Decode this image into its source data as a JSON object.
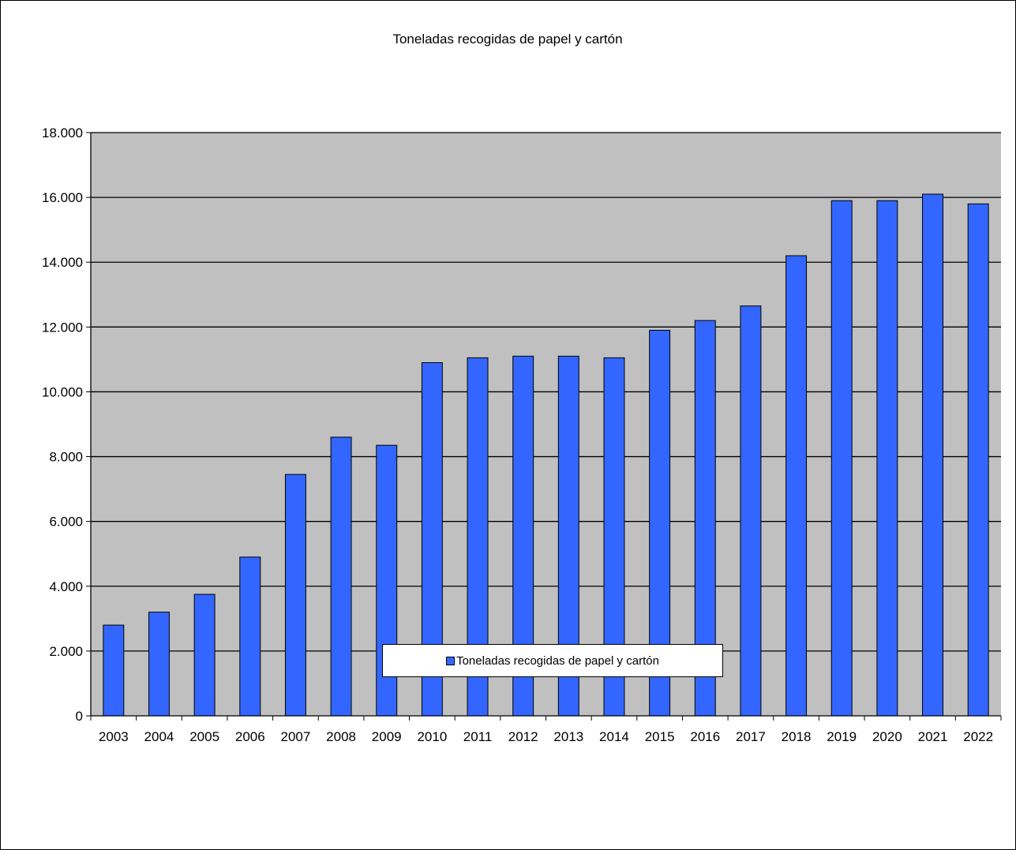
{
  "chart_data": {
    "type": "bar",
    "title": "Toneladas recogidas de papel y cartón",
    "xlabel": "",
    "ylabel": "",
    "categories": [
      "2003",
      "2004",
      "2005",
      "2006",
      "2007",
      "2008",
      "2009",
      "2010",
      "2011",
      "2012",
      "2013",
      "2014",
      "2015",
      "2016",
      "2017",
      "2018",
      "2019",
      "2020",
      "2021",
      "2022"
    ],
    "series": [
      {
        "name": "Toneladas recogidas de papel y cartón",
        "values": [
          2800,
          3200,
          3750,
          4900,
          7450,
          8600,
          8350,
          10900,
          11050,
          11100,
          11100,
          11050,
          11900,
          12200,
          12650,
          14200,
          15900,
          15900,
          16100,
          15800
        ]
      }
    ],
    "ylim": [
      0,
      18000
    ],
    "yticks": [
      0,
      2000,
      4000,
      6000,
      8000,
      10000,
      12000,
      14000,
      16000,
      18000
    ],
    "ytick_labels": [
      "0",
      "2.000",
      "4.000",
      "6.000",
      "8.000",
      "10.000",
      "12.000",
      "14.000",
      "16.000",
      "18.000"
    ],
    "grid": true,
    "legend_position": "bottom",
    "colors": {
      "bar": "#3366FF",
      "plot_background": "#C0C0C0",
      "grid": "#000000"
    }
  }
}
